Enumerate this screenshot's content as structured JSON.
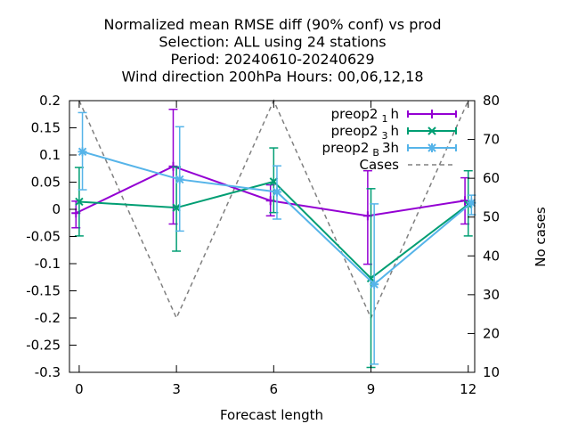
{
  "chart_data": {
    "type": "line",
    "title_lines": [
      "Normalized mean RMSE diff (90% conf) vs prod",
      "Selection: ALL using    24 stations",
      "Period: 20240610-20240629",
      "Wind direction 200hPa   Hours:  00,06,12,18"
    ],
    "xlabel": "Forecast length",
    "ylabel": "",
    "y2label": "No cases",
    "x_ticks": [
      0,
      3,
      6,
      9,
      12
    ],
    "y_ticks": [
      0.2,
      0.15,
      0.1,
      0.05,
      0,
      -0.05,
      -0.1,
      -0.15,
      -0.2,
      -0.25,
      -0.3
    ],
    "y_tick_labels": [
      "0.2",
      "0.15",
      "0.1",
      "0.05",
      "0",
      "-0.05",
      "-0.1",
      "-0.15",
      "-0.2",
      "-0.25",
      "-0.3"
    ],
    "y2_ticks": [
      80,
      70,
      60,
      50,
      40,
      30,
      20,
      10
    ],
    "xlim": [
      -0.3,
      12.2
    ],
    "ylim": [
      -0.3,
      0.2
    ],
    "y2lim": [
      10,
      80
    ],
    "legend_position": "top-right",
    "series": [
      {
        "name": "preop2",
        "sub": "1",
        "suffix": "h",
        "axis": "y1",
        "color": "#9400d3",
        "marker": "plus",
        "x": [
          -0.1,
          2.9,
          5.9,
          8.9,
          11.9
        ],
        "y": [
          -0.007,
          0.079,
          0.016,
          -0.012,
          0.016
        ],
        "err_low": [
          -0.034,
          -0.027,
          -0.012,
          -0.101,
          -0.027
        ],
        "err_high": [
          0.015,
          0.184,
          0.045,
          0.071,
          0.058
        ]
      },
      {
        "name": "preop2",
        "sub": "3",
        "suffix": "h",
        "axis": "y1",
        "color": "#009e73",
        "marker": "cross",
        "x": [
          0.0,
          3.0,
          6.0,
          9.0,
          12.0
        ],
        "y": [
          0.014,
          0.003,
          0.051,
          -0.127,
          0.009
        ],
        "err_low": [
          -0.049,
          -0.077,
          -0.006,
          -0.291,
          -0.049
        ],
        "err_high": [
          0.077,
          0.078,
          0.113,
          0.038,
          0.071
        ]
      },
      {
        "name": "preop2",
        "sub": "B",
        "suffix": "3h",
        "axis": "y1",
        "color": "#56b4e9",
        "marker": "star",
        "x": [
          0.1,
          3.1,
          6.1,
          9.1,
          12.1
        ],
        "y": [
          0.106,
          0.055,
          0.032,
          -0.138,
          0.012
        ],
        "err_low": [
          0.036,
          -0.04,
          -0.018,
          -0.285,
          -0.01
        ],
        "err_high": [
          0.178,
          0.152,
          0.08,
          0.01,
          0.026
        ]
      },
      {
        "name": "Cases",
        "axis": "y2",
        "color": "#808080",
        "marker": "none",
        "dashed": true,
        "x": [
          0,
          3,
          6,
          9,
          12
        ],
        "y": [
          80,
          24,
          80,
          24,
          80
        ]
      }
    ]
  }
}
